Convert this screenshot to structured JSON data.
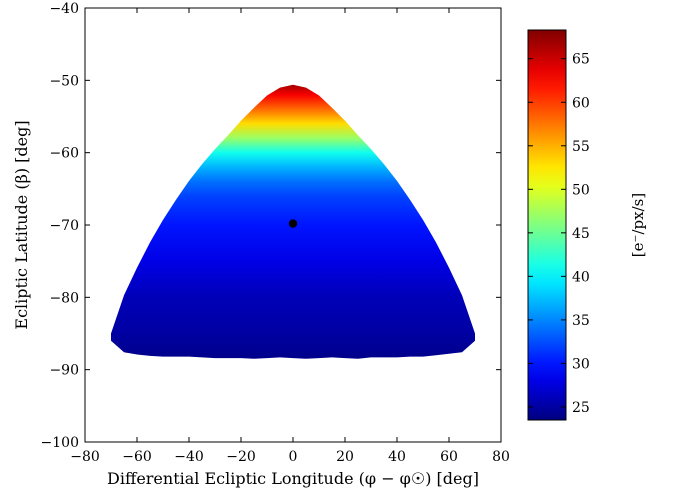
{
  "chart_data": {
    "type": "heatmap",
    "title": "",
    "xlabel": "Differential Ecliptic Longitude (φ − φ☉) [deg]",
    "ylabel": "Ecliptic Latitude (β) [deg]",
    "xlim": [
      -80,
      80
    ],
    "ylim": [
      -100,
      -40
    ],
    "x_ticks": [
      -80,
      -60,
      -40,
      -20,
      0,
      20,
      40,
      60,
      80
    ],
    "x_tick_labels": [
      "−80",
      "−60",
      "−40",
      "−20",
      "0",
      "20",
      "40",
      "60",
      "80"
    ],
    "y_ticks": [
      -40,
      -50,
      -60,
      -70,
      -80,
      -90,
      -100
    ],
    "y_tick_labels": [
      "−40",
      "−50",
      "−60",
      "−70",
      "−80",
      "−90",
      "−100"
    ],
    "grid": false,
    "region_outline": {
      "x": [
        -70,
        -65,
        -60,
        -55,
        -50,
        -45,
        -40,
        -35,
        -30,
        -25,
        -20,
        -15,
        -10,
        -5,
        0,
        5,
        10,
        15,
        20,
        25,
        30,
        35,
        40,
        45,
        50,
        55,
        60,
        65,
        70
      ],
      "upper_y": [
        -85.0,
        -79.7,
        -75.9,
        -72.4,
        -69.3,
        -66.5,
        -63.9,
        -61.6,
        -59.5,
        -57.6,
        -55.6,
        -53.8,
        -52.1,
        -51.0,
        -50.6,
        -51.0,
        -52.1,
        -53.8,
        -55.6,
        -57.6,
        -59.5,
        -61.6,
        -63.9,
        -66.5,
        -69.3,
        -72.4,
        -75.9,
        -79.7,
        -85.0
      ],
      "lower_y": [
        -86.0,
        -87.6,
        -87.9,
        -88.1,
        -88.2,
        -88.2,
        -88.2,
        -88.3,
        -88.4,
        -88.4,
        -88.4,
        -88.5,
        -88.4,
        -88.3,
        -88.4,
        -88.5,
        -88.4,
        -88.3,
        -88.4,
        -88.5,
        -88.3,
        -88.3,
        -88.3,
        -88.2,
        -88.2,
        -88.0,
        -87.8,
        -87.6,
        -86.0
      ]
    },
    "value_by_latitude": {
      "latitude": [
        -50.5,
        -52,
        -54,
        -56,
        -58,
        -60,
        -62,
        -64,
        -66,
        -70,
        -75,
        -80,
        -85,
        -88.5
      ],
      "value": [
        67,
        63,
        58,
        53,
        47,
        41,
        37,
        34,
        32,
        30,
        28,
        26,
        25,
        24
      ]
    },
    "marker": {
      "x": 0,
      "y": -69.8,
      "color": "#000000"
    },
    "colorbar": {
      "label": "[e⁻/px/s]",
      "range": [
        23.5,
        68.3
      ],
      "ticks": [
        25,
        30,
        35,
        40,
        45,
        50,
        55,
        60,
        65
      ],
      "colormap": "jet"
    }
  }
}
